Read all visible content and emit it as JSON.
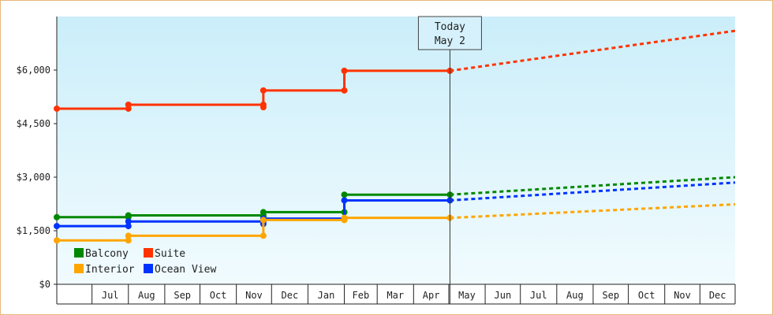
{
  "chart_data": {
    "type": "line",
    "step": true,
    "title": "",
    "xlabel": "",
    "ylabel": "",
    "ylim": [
      0,
      7500
    ],
    "yticks": [
      0,
      1500,
      3000,
      4500,
      6000
    ],
    "ytick_labels": [
      "$0",
      "$1,500",
      "$3,000",
      "$4,500",
      "$6,000"
    ],
    "x_domain": [
      "2021-06-01",
      "2022-12-31"
    ],
    "month_ticks": [
      {
        "label": "Jul",
        "date": "2021-07-01"
      },
      {
        "label": "Aug",
        "date": "2021-08-01"
      },
      {
        "label": "Sep",
        "date": "2021-09-01"
      },
      {
        "label": "Oct",
        "date": "2021-10-01"
      },
      {
        "label": "Nov",
        "date": "2021-11-01"
      },
      {
        "label": "Dec",
        "date": "2021-12-01"
      },
      {
        "label": "Jan",
        "date": "2022-01-01"
      },
      {
        "label": "Feb",
        "date": "2022-02-01"
      },
      {
        "label": "Mar",
        "date": "2022-03-01"
      },
      {
        "label": "Apr",
        "date": "2022-04-01"
      },
      {
        "label": "May",
        "date": "2022-05-01"
      },
      {
        "label": "Jun",
        "date": "2022-06-01"
      },
      {
        "label": "Jul",
        "date": "2022-07-01"
      },
      {
        "label": "Aug",
        "date": "2022-08-01"
      },
      {
        "label": "Sep",
        "date": "2022-09-01"
      },
      {
        "label": "Oct",
        "date": "2022-10-01"
      },
      {
        "label": "Nov",
        "date": "2022-11-01"
      },
      {
        "label": "Dec",
        "date": "2022-12-01"
      }
    ],
    "today": {
      "line1": "Today",
      "line2": "May 2",
      "date": "2022-05-02"
    },
    "legend_position": "bottom-left",
    "grid": false,
    "series": [
      {
        "name": "Suite",
        "color": "#ff3300",
        "points": [
          {
            "x": "2021-06-01",
            "y": 4920
          },
          {
            "x": "2021-08-01",
            "y": 4920
          },
          {
            "x": "2021-08-01",
            "y": 5030
          },
          {
            "x": "2021-11-24",
            "y": 5030
          },
          {
            "x": "2021-11-24",
            "y": 4960
          },
          {
            "x": "2021-11-24",
            "y": 5430
          },
          {
            "x": "2022-02-01",
            "y": 5430
          },
          {
            "x": "2022-02-01",
            "y": 5980
          },
          {
            "x": "2022-05-02",
            "y": 5980
          }
        ],
        "projection": [
          {
            "x": "2022-05-02",
            "y": 5980
          },
          {
            "x": "2022-12-31",
            "y": 7100
          }
        ]
      },
      {
        "name": "Balcony",
        "color": "#008800",
        "points": [
          {
            "x": "2021-06-01",
            "y": 1880
          },
          {
            "x": "2021-08-01",
            "y": 1880
          },
          {
            "x": "2021-08-01",
            "y": 1930
          },
          {
            "x": "2021-11-24",
            "y": 1930
          },
          {
            "x": "2021-11-24",
            "y": 1890
          },
          {
            "x": "2021-11-24",
            "y": 2020
          },
          {
            "x": "2022-02-01",
            "y": 2020
          },
          {
            "x": "2022-02-01",
            "y": 2510
          },
          {
            "x": "2022-05-02",
            "y": 2510
          }
        ],
        "projection": [
          {
            "x": "2022-05-02",
            "y": 2510
          },
          {
            "x": "2022-12-31",
            "y": 3000
          }
        ]
      },
      {
        "name": "Ocean View",
        "color": "#0033ff",
        "points": [
          {
            "x": "2021-06-01",
            "y": 1630
          },
          {
            "x": "2021-08-01",
            "y": 1630
          },
          {
            "x": "2021-08-01",
            "y": 1760
          },
          {
            "x": "2021-11-24",
            "y": 1760
          },
          {
            "x": "2021-11-24",
            "y": 1690
          },
          {
            "x": "2021-11-24",
            "y": 1840
          },
          {
            "x": "2022-02-01",
            "y": 1840
          },
          {
            "x": "2022-02-01",
            "y": 2350
          },
          {
            "x": "2022-05-02",
            "y": 2350
          }
        ],
        "projection": [
          {
            "x": "2022-05-02",
            "y": 2350
          },
          {
            "x": "2022-12-31",
            "y": 2850
          }
        ]
      },
      {
        "name": "Interior",
        "color": "#ffa500",
        "points": [
          {
            "x": "2021-06-01",
            "y": 1230
          },
          {
            "x": "2021-08-01",
            "y": 1230
          },
          {
            "x": "2021-08-01",
            "y": 1360
          },
          {
            "x": "2021-11-24",
            "y": 1360
          },
          {
            "x": "2021-11-24",
            "y": 1800
          },
          {
            "x": "2022-02-01",
            "y": 1800
          },
          {
            "x": "2022-02-01",
            "y": 1860
          },
          {
            "x": "2022-05-02",
            "y": 1860
          }
        ],
        "projection": [
          {
            "x": "2022-05-02",
            "y": 1860
          },
          {
            "x": "2022-12-31",
            "y": 2240
          }
        ]
      }
    ],
    "legend": [
      {
        "name": "Balcony",
        "color": "#008800"
      },
      {
        "name": "Suite",
        "color": "#ff3300"
      },
      {
        "name": "Interior",
        "color": "#ffa500"
      },
      {
        "name": "Ocean View",
        "color": "#0033ff"
      }
    ]
  }
}
